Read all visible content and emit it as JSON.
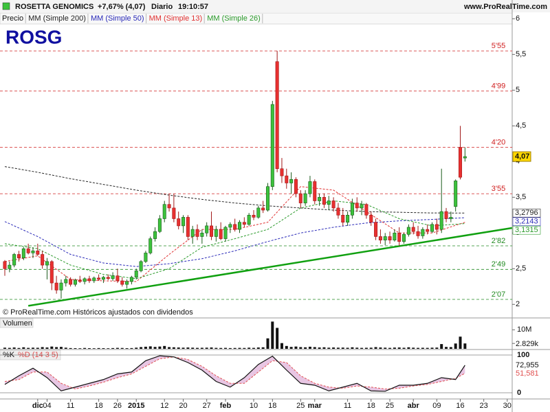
{
  "header": {
    "name": "ROSETTA GENOMICS",
    "change": "+7,67% (4,07)",
    "period": "Diario",
    "time": "19:10:57",
    "site": "www.ProRealTime.com"
  },
  "chart_data": {
    "type": "candlestick",
    "title": "ROSG",
    "price_legend": "Precio",
    "footer": "© ProRealTime.com  Históricos ajustados con dividendos",
    "up_color": "#3cc23c",
    "down_color": "#e83030",
    "candles": [
      [
        2.6,
        2.62,
        2.4,
        2.5
      ],
      [
        2.5,
        2.6,
        2.45,
        2.55
      ],
      [
        2.55,
        2.72,
        2.52,
        2.7
      ],
      [
        2.7,
        2.75,
        2.6,
        2.65
      ],
      [
        2.65,
        2.8,
        2.62,
        2.78
      ],
      [
        2.78,
        2.85,
        2.7,
        2.72
      ],
      [
        2.72,
        2.8,
        2.65,
        2.75
      ],
      [
        2.75,
        2.85,
        2.68,
        2.7
      ],
      [
        2.7,
        2.75,
        2.5,
        2.55
      ],
      [
        2.55,
        2.65,
        2.35,
        2.6
      ],
      [
        2.6,
        2.62,
        2.2,
        2.3
      ],
      [
        2.3,
        2.4,
        2.15,
        2.2
      ],
      [
        2.2,
        2.35,
        2.08,
        2.3
      ],
      [
        2.3,
        2.4,
        2.25,
        2.35
      ],
      [
        2.35,
        2.38,
        2.25,
        2.28
      ],
      [
        2.28,
        2.36,
        2.25,
        2.34
      ],
      [
        2.34,
        2.4,
        2.3,
        2.32
      ],
      [
        2.32,
        2.38,
        2.28,
        2.36
      ],
      [
        2.36,
        2.4,
        2.3,
        2.33
      ],
      [
        2.33,
        2.39,
        2.3,
        2.37
      ],
      [
        2.37,
        2.42,
        2.33,
        2.35
      ],
      [
        2.35,
        2.4,
        2.3,
        2.38
      ],
      [
        2.38,
        2.42,
        2.34,
        2.36
      ],
      [
        2.36,
        2.45,
        2.33,
        2.4
      ],
      [
        2.4,
        2.5,
        2.3,
        2.33
      ],
      [
        2.33,
        2.38,
        2.25,
        2.28
      ],
      [
        2.28,
        2.35,
        2.22,
        2.32
      ],
      [
        2.32,
        2.4,
        2.28,
        2.38
      ],
      [
        2.38,
        2.5,
        2.35,
        2.47
      ],
      [
        2.47,
        2.62,
        2.45,
        2.6
      ],
      [
        2.6,
        2.75,
        2.58,
        2.72
      ],
      [
        2.72,
        2.95,
        2.7,
        2.92
      ],
      [
        2.92,
        3.08,
        2.88,
        3.02
      ],
      [
        3.02,
        3.25,
        3.0,
        3.2
      ],
      [
        3.2,
        3.45,
        3.15,
        3.4
      ],
      [
        3.4,
        3.55,
        3.3,
        3.35
      ],
      [
        3.35,
        3.55,
        3.15,
        3.2
      ],
      [
        3.2,
        3.3,
        3.05,
        3.1
      ],
      [
        3.1,
        3.25,
        3.0,
        3.22
      ],
      [
        3.22,
        3.25,
        2.9,
        2.95
      ],
      [
        2.95,
        3.1,
        2.85,
        3.05
      ],
      [
        3.05,
        3.12,
        2.9,
        2.95
      ],
      [
        2.95,
        3.05,
        2.85,
        3.0
      ],
      [
        3.0,
        3.15,
        2.95,
        3.1
      ],
      [
        3.1,
        3.3,
        2.9,
        2.95
      ],
      [
        2.95,
        3.1,
        2.88,
        3.05
      ],
      [
        3.05,
        3.15,
        2.9,
        2.92
      ],
      [
        2.92,
        3.1,
        2.88,
        3.08
      ],
      [
        3.08,
        3.15,
        3.0,
        3.12
      ],
      [
        3.12,
        3.2,
        3.02,
        3.05
      ],
      [
        3.05,
        3.18,
        3.0,
        3.15
      ],
      [
        3.15,
        3.22,
        3.08,
        3.12
      ],
      [
        3.12,
        3.28,
        3.1,
        3.25
      ],
      [
        3.25,
        3.32,
        3.18,
        3.22
      ],
      [
        3.22,
        3.38,
        3.2,
        3.35
      ],
      [
        3.35,
        3.45,
        3.28,
        3.32
      ],
      [
        3.32,
        3.7,
        3.3,
        3.65
      ],
      [
        3.65,
        4.85,
        3.6,
        4.8
      ],
      [
        5.4,
        5.55,
        3.85,
        3.9
      ],
      [
        3.9,
        4.05,
        3.7,
        3.8
      ],
      [
        3.8,
        3.9,
        3.62,
        3.7
      ],
      [
        3.7,
        3.85,
        3.55,
        3.75
      ],
      [
        3.75,
        3.78,
        3.5,
        3.55
      ],
      [
        3.55,
        3.6,
        3.35,
        3.42
      ],
      [
        3.42,
        3.6,
        3.38,
        3.55
      ],
      [
        3.55,
        3.8,
        3.5,
        3.72
      ],
      [
        3.72,
        3.75,
        3.4,
        3.45
      ],
      [
        3.45,
        3.55,
        3.38,
        3.5
      ],
      [
        3.5,
        3.55,
        3.35,
        3.4
      ],
      [
        3.4,
        3.52,
        3.32,
        3.45
      ],
      [
        3.45,
        3.5,
        3.3,
        3.35
      ],
      [
        3.35,
        3.42,
        3.2,
        3.25
      ],
      [
        3.25,
        3.35,
        3.1,
        3.15
      ],
      [
        3.15,
        3.3,
        3.1,
        3.25
      ],
      [
        3.25,
        3.48,
        3.2,
        3.42
      ],
      [
        3.42,
        3.5,
        3.3,
        3.35
      ],
      [
        3.35,
        3.45,
        3.25,
        3.4
      ],
      [
        3.4,
        3.42,
        3.2,
        3.25
      ],
      [
        3.25,
        3.3,
        3.1,
        3.15
      ],
      [
        3.15,
        3.2,
        2.9,
        2.95
      ],
      [
        2.95,
        3.05,
        2.85,
        2.9
      ],
      [
        2.9,
        3.0,
        2.83,
        2.95
      ],
      [
        2.95,
        3.02,
        2.85,
        2.9
      ],
      [
        2.9,
        3.05,
        2.88,
        3.0
      ],
      [
        3.0,
        3.08,
        2.82,
        2.88
      ],
      [
        2.88,
        3.0,
        2.85,
        2.98
      ],
      [
        2.98,
        3.12,
        2.95,
        3.08
      ],
      [
        3.08,
        3.15,
        2.98,
        3.02
      ],
      [
        3.02,
        3.1,
        2.92,
        2.96
      ],
      [
        2.96,
        3.08,
        2.92,
        3.05
      ],
      [
        3.05,
        3.12,
        2.98,
        3.02
      ],
      [
        3.02,
        3.15,
        3.0,
        3.12
      ],
      [
        3.12,
        3.2,
        2.98,
        3.05
      ],
      [
        3.05,
        3.9,
        3.0,
        3.3
      ],
      [
        3.3,
        3.35,
        3.15,
        3.2
      ],
      [
        3.2,
        3.3,
        3.15,
        3.22
      ],
      [
        3.37,
        3.75,
        3.3,
        3.73
      ],
      [
        4.2,
        4.5,
        3.75,
        3.78
      ],
      [
        4.05,
        4.2,
        4.0,
        4.07
      ]
    ],
    "last_price": {
      "value": 4.07,
      "label": "4,07"
    },
    "ylim": [
      1.82,
      6.08
    ],
    "yticks": [
      2,
      {
        "value": 2.5,
        "label": "2,5"
      },
      3,
      {
        "value": 3.5,
        "label": "3,5"
      },
      4,
      {
        "value": 4.5,
        "label": "4,5"
      },
      5,
      {
        "value": 5.5,
        "label": "5,5"
      },
      6
    ],
    "xticks": [
      {
        "value": 7,
        "label": "dic"
      },
      {
        "value": 9,
        "label": "04"
      },
      {
        "value": 14,
        "label": "11"
      },
      {
        "value": 20,
        "label": "18"
      },
      {
        "value": 24,
        "label": "26"
      },
      {
        "value": 28,
        "label": "2015"
      },
      {
        "value": 34,
        "label": "12"
      },
      {
        "value": 38,
        "label": "20"
      },
      {
        "value": 43,
        "label": "27"
      },
      {
        "value": 47,
        "label": "feb"
      },
      {
        "value": 53,
        "label": "10"
      },
      {
        "value": 57,
        "label": "18"
      },
      {
        "value": 63,
        "label": "25"
      },
      {
        "value": 66,
        "label": "mar"
      },
      {
        "value": 73,
        "label": "11"
      },
      {
        "value": 78,
        "label": "18"
      },
      {
        "value": 82,
        "label": "25"
      },
      {
        "value": 87,
        "label": "abr"
      },
      {
        "value": 92,
        "label": "09"
      },
      {
        "value": 97,
        "label": "16"
      },
      {
        "value": 102,
        "label": "23"
      },
      {
        "value": 107,
        "label": "30"
      }
    ],
    "ma": [
      {
        "name": "MM (Simple 200)",
        "color": "#222222",
        "x": [
          0,
          7,
          14,
          21,
          28,
          35,
          42,
          49,
          56,
          63,
          70,
          77,
          84,
          91,
          98
        ],
        "values": [
          3.93,
          3.85,
          3.76,
          3.68,
          3.6,
          3.53,
          3.47,
          3.42,
          3.38,
          3.35,
          3.32,
          3.3,
          3.29,
          3.28,
          3.2796
        ],
        "last_label": {
          "value": 3.2796,
          "label": "3,2796"
        }
      },
      {
        "name": "MM (Simple 50)",
        "color": "#2a2ab8",
        "x": [
          0,
          7,
          14,
          21,
          28,
          35,
          42,
          49,
          56,
          63,
          70,
          77,
          84,
          91,
          98
        ],
        "values": [
          3.16,
          2.95,
          2.7,
          2.58,
          2.53,
          2.57,
          2.64,
          2.75,
          2.88,
          3.0,
          3.08,
          3.14,
          3.17,
          3.19,
          3.2143
        ],
        "last_label": {
          "value": 3.2143,
          "label": "3,2143"
        }
      },
      {
        "name": "MM (Simple 13)",
        "color": "#e03030",
        "x": [
          0,
          7,
          14,
          21,
          28,
          35,
          42,
          49,
          56,
          63,
          70,
          77,
          84,
          91,
          98
        ],
        "values": [
          2.6,
          2.68,
          2.35,
          2.33,
          2.32,
          2.7,
          3.05,
          3.05,
          3.15,
          3.65,
          3.6,
          3.3,
          3.0,
          3.0,
          3.15
        ]
      },
      {
        "name": "MM (Simple 26)",
        "color": "#2a9a2a",
        "x": [
          0,
          7,
          14,
          21,
          28,
          35,
          42,
          49,
          56,
          63,
          70,
          77,
          84,
          91,
          98
        ],
        "values": [
          2.85,
          2.78,
          2.55,
          2.42,
          2.36,
          2.5,
          2.8,
          2.92,
          3.05,
          3.35,
          3.45,
          3.4,
          3.2,
          3.1,
          3.1315
        ],
        "last_label": {
          "value": 3.1315,
          "label": "3,1315"
        }
      }
    ],
    "levels": [
      {
        "value": 5.55,
        "label": "5'55",
        "color": "#d02020"
      },
      {
        "value": 4.99,
        "label": "4'99",
        "color": "#d02020"
      },
      {
        "value": 4.2,
        "label": "4'20",
        "color": "#d02020"
      },
      {
        "value": 3.55,
        "label": "3'55",
        "color": "#d02020"
      },
      {
        "value": 2.82,
        "label": "2'82",
        "color": "#208a20"
      },
      {
        "value": 2.49,
        "label": "2'49",
        "color": "#208a20"
      },
      {
        "value": 2.07,
        "label": "2'07",
        "color": "#208a20"
      }
    ],
    "trendline": {
      "color": "#10a010",
      "x": [
        5,
        108
      ],
      "values": [
        1.98,
        3.07
      ]
    },
    "volume": {
      "title": "Volumen",
      "color": "#111111",
      "ylim": [
        0,
        15500000
      ],
      "yticks": [
        {
          "value": 10000000,
          "label": "10M"
        }
      ],
      "values": [
        600000,
        500000,
        700000,
        450000,
        800000,
        500000,
        600000,
        550000,
        900000,
        700000,
        1200000,
        900000,
        1000000,
        600000,
        400000,
        350000,
        300000,
        450000,
        350000,
        300000,
        400000,
        350000,
        300000,
        400000,
        500000,
        450000,
        350000,
        400000,
        600000,
        900000,
        1100000,
        1300000,
        1000000,
        1200000,
        1500000,
        900000,
        800000,
        700000,
        600000,
        700000,
        600000,
        500000,
        550000,
        600000,
        700000,
        500000,
        450000,
        500000,
        400000,
        450000,
        500000,
        450000,
        600000,
        500000,
        700000,
        800000,
        5500000,
        14300000,
        11000000,
        3000000,
        1500000,
        1000000,
        1200000,
        900000,
        800000,
        1100000,
        900000,
        700000,
        800000,
        600000,
        700000,
        600000,
        650000,
        550000,
        800000,
        600000,
        500000,
        550000,
        600000,
        900000,
        700000,
        600000,
        500000,
        650000,
        700000,
        550000,
        800000,
        600000,
        500000,
        550000,
        500000,
        600000,
        650000,
        2500000,
        1000000,
        900000,
        2800000,
        6400000,
        2829000
      ],
      "last": {
        "value": 2829000,
        "label": "2.829k"
      }
    },
    "stochastic": {
      "k_name": "%K",
      "d_name": "%D (14 3 5)",
      "k_color": "#111111",
      "d_color": "#e05050",
      "fill": "#d8a0d0",
      "ylim": [
        0,
        100
      ],
      "yticks": [
        0,
        100
      ],
      "x": [
        0,
        3,
        6,
        9,
        12,
        15,
        18,
        21,
        24,
        27,
        30,
        33,
        36,
        39,
        42,
        45,
        48,
        51,
        54,
        57,
        60,
        63,
        66,
        69,
        72,
        75,
        78,
        81,
        84,
        87,
        90,
        93,
        96,
        98
      ],
      "k": [
        22,
        45,
        65,
        40,
        5,
        15,
        25,
        35,
        50,
        55,
        85,
        98,
        95,
        80,
        60,
        30,
        15,
        40,
        75,
        97,
        60,
        25,
        20,
        5,
        15,
        25,
        5,
        4,
        20,
        20,
        25,
        40,
        35,
        72.955
      ],
      "d": [
        30,
        35,
        55,
        55,
        25,
        10,
        18,
        28,
        40,
        50,
        70,
        90,
        95,
        88,
        70,
        45,
        25,
        25,
        55,
        85,
        80,
        45,
        25,
        15,
        12,
        18,
        15,
        10,
        12,
        18,
        22,
        30,
        38,
        51.581
      ],
      "k_last": {
        "value": 72.955,
        "label": "72,955"
      },
      "d_last": {
        "value": 51.581,
        "label": "51,581"
      }
    }
  }
}
